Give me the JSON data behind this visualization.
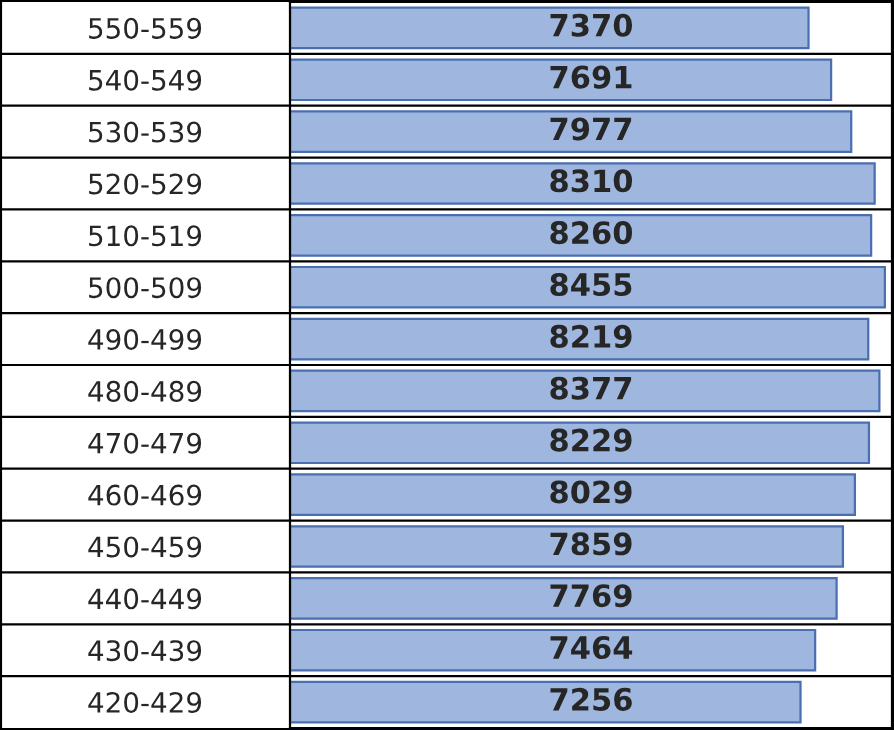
{
  "chart_data": {
    "type": "bar",
    "orientation": "horizontal",
    "categories": [
      "550-559",
      "540-549",
      "530-539",
      "520-529",
      "510-519",
      "500-509",
      "490-499",
      "480-489",
      "470-479",
      "460-469",
      "450-459",
      "440-449",
      "430-439",
      "420-429"
    ],
    "values": [
      7370,
      7691,
      7977,
      8310,
      8260,
      8455,
      8219,
      8377,
      8229,
      8029,
      7859,
      7769,
      7464,
      7256
    ],
    "color": "#9fb6de",
    "data_labels": true
  }
}
